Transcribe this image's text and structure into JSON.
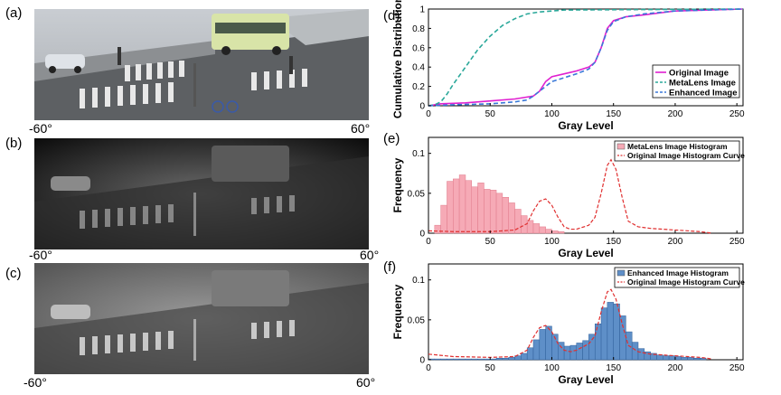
{
  "panel_labels": {
    "a": "(a)",
    "b": "(b)",
    "c": "(c)",
    "d": "(d)",
    "e": "(e)",
    "f": "(f)"
  },
  "angle_labels": {
    "left": "-60°",
    "right": "60°"
  },
  "images": [
    {
      "panel": "a",
      "description": "",
      "tone": "color"
    },
    {
      "panel": "b",
      "tone": "dark-gray"
    },
    {
      "panel": "c",
      "tone": "gray"
    }
  ],
  "watermark": "",
  "colors": {
    "original": "#e020d0",
    "metalens": "#2aa89a",
    "enhanced": "#3a78d8",
    "hist_metalens": "#f6aab6",
    "hist_enhanced": "#5e8fc8",
    "curve_original": "#e03030"
  },
  "chart_data": [
    {
      "panel": "d",
      "type": "line",
      "xlabel": "Gray Level",
      "ylabel": "Cumulative Distribution",
      "xlim": [
        0,
        255
      ],
      "ylim": [
        0,
        1
      ],
      "xticks": [
        "0",
        "50",
        "100",
        "150",
        "200",
        "250"
      ],
      "yticks": [
        "0",
        "0.2",
        "0.4",
        "0.6",
        "0.8",
        "1"
      ],
      "legend_position": "lower-right",
      "series": [
        {
          "name": "Original Image",
          "style": "solid",
          "x": [
            0,
            10,
            30,
            50,
            70,
            85,
            90,
            95,
            100,
            110,
            120,
            130,
            135,
            140,
            145,
            150,
            160,
            175,
            200,
            255
          ],
          "y": [
            0,
            0.02,
            0.03,
            0.05,
            0.07,
            0.1,
            0.15,
            0.25,
            0.3,
            0.33,
            0.36,
            0.4,
            0.45,
            0.6,
            0.8,
            0.88,
            0.92,
            0.94,
            0.98,
            1
          ]
        },
        {
          "name": "MetaLens Image",
          "style": "dashed",
          "x": [
            0,
            5,
            10,
            15,
            20,
            30,
            40,
            50,
            60,
            70,
            80,
            90,
            100,
            110,
            255
          ],
          "y": [
            0,
            0.01,
            0.04,
            0.12,
            0.22,
            0.4,
            0.58,
            0.72,
            0.83,
            0.9,
            0.95,
            0.97,
            0.98,
            0.99,
            1
          ]
        },
        {
          "name": "Enhanced Image",
          "style": "dashed",
          "x": [
            0,
            20,
            50,
            70,
            80,
            85,
            90,
            95,
            100,
            110,
            120,
            130,
            135,
            140,
            145,
            150,
            160,
            175,
            200,
            255
          ],
          "y": [
            0,
            0.01,
            0.02,
            0.04,
            0.06,
            0.1,
            0.15,
            0.2,
            0.25,
            0.29,
            0.33,
            0.38,
            0.45,
            0.6,
            0.78,
            0.87,
            0.92,
            0.95,
            0.98,
            1
          ]
        }
      ]
    },
    {
      "panel": "e",
      "type": "bar",
      "xlabel": "Gray Level",
      "ylabel": "Frequency",
      "xlim": [
        0,
        255
      ],
      "ylim": [
        0,
        0.12
      ],
      "xticks": [
        "0",
        "50",
        "100",
        "150",
        "200",
        "250"
      ],
      "yticks": [
        "0",
        "0.05",
        "0.1"
      ],
      "legend_position": "top-right",
      "bin_width": 5,
      "bins_start": [
        5,
        10,
        15,
        20,
        25,
        30,
        35,
        40,
        45,
        50,
        55,
        60,
        65,
        70,
        75,
        80,
        85,
        90,
        95,
        100,
        105
      ],
      "series": [
        {
          "name": "MetaLens Image Histogram",
          "style": "bars",
          "values": [
            0.01,
            0.035,
            0.065,
            0.068,
            0.073,
            0.066,
            0.058,
            0.063,
            0.055,
            0.054,
            0.05,
            0.045,
            0.038,
            0.03,
            0.022,
            0.016,
            0.012,
            0.008,
            0.005,
            0.003,
            0.002
          ]
        },
        {
          "name": "Original Image Histogram Curve",
          "style": "dashed",
          "x": [
            0,
            20,
            50,
            70,
            80,
            85,
            90,
            95,
            100,
            105,
            110,
            115,
            120,
            130,
            135,
            140,
            145,
            148,
            152,
            157,
            162,
            170,
            180,
            200,
            220,
            230
          ],
          "y": [
            0.003,
            0.002,
            0.002,
            0.004,
            0.012,
            0.028,
            0.04,
            0.043,
            0.035,
            0.02,
            0.008,
            0.005,
            0.005,
            0.01,
            0.02,
            0.05,
            0.085,
            0.092,
            0.08,
            0.045,
            0.015,
            0.008,
            0.006,
            0.004,
            0.002,
            0
          ]
        }
      ]
    },
    {
      "panel": "f",
      "type": "bar",
      "xlabel": "Gray Level",
      "ylabel": "Frequency",
      "xlim": [
        0,
        255
      ],
      "ylim": [
        0,
        0.12
      ],
      "xticks": [
        "0",
        "50",
        "100",
        "150",
        "200",
        "250"
      ],
      "yticks": [
        "0",
        "0.05",
        "0.1"
      ],
      "legend_position": "top-right",
      "bin_width": 5,
      "bins_start": [
        0,
        5,
        10,
        15,
        20,
        25,
        30,
        35,
        40,
        45,
        50,
        55,
        60,
        65,
        70,
        75,
        80,
        85,
        90,
        95,
        100,
        105,
        110,
        115,
        120,
        125,
        130,
        135,
        140,
        145,
        150,
        155,
        160,
        165,
        170,
        175,
        180,
        185,
        190,
        195,
        200,
        205,
        210,
        215,
        220
      ],
      "series": [
        {
          "name": "Enhanced Image Histogram",
          "style": "bars",
          "values": [
            0.001,
            0.001,
            0.001,
            0.001,
            0.001,
            0.001,
            0.001,
            0.001,
            0.001,
            0.001,
            0.001,
            0.002,
            0.002,
            0.003,
            0.005,
            0.008,
            0.015,
            0.025,
            0.038,
            0.042,
            0.032,
            0.022,
            0.017,
            0.018,
            0.021,
            0.024,
            0.032,
            0.045,
            0.065,
            0.072,
            0.07,
            0.055,
            0.035,
            0.022,
            0.014,
            0.01,
            0.008,
            0.006,
            0.005,
            0.005,
            0.004,
            0.003,
            0.003,
            0.002,
            0.002
          ]
        },
        {
          "name": "Original Image Histogram Curve",
          "style": "dashed",
          "x": [
            0,
            20,
            50,
            70,
            80,
            85,
            90,
            95,
            100,
            105,
            110,
            115,
            120,
            130,
            135,
            140,
            145,
            148,
            152,
            157,
            162,
            170,
            180,
            200,
            220,
            230
          ],
          "y": [
            0.007,
            0.004,
            0.003,
            0.004,
            0.012,
            0.028,
            0.04,
            0.043,
            0.035,
            0.02,
            0.012,
            0.01,
            0.012,
            0.02,
            0.03,
            0.06,
            0.085,
            0.088,
            0.076,
            0.045,
            0.018,
            0.01,
            0.007,
            0.005,
            0.003,
            0.001
          ]
        }
      ]
    }
  ]
}
